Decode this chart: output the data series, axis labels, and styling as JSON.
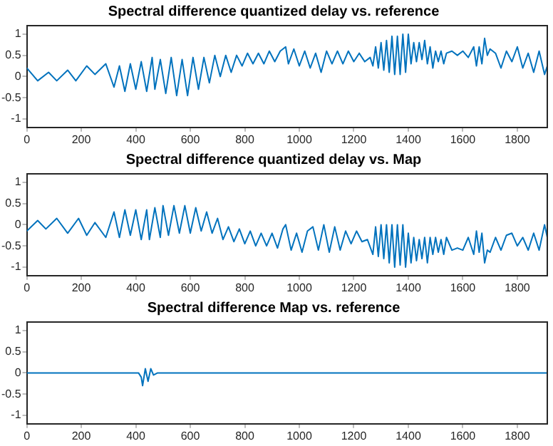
{
  "chart_data": [
    {
      "type": "line",
      "title": "Spectral difference quantized delay vs. reference",
      "color": "#0072bd",
      "xlim": [
        0,
        1910
      ],
      "xticks": [
        0,
        200,
        400,
        600,
        800,
        1000,
        1200,
        1400,
        1600,
        1800
      ],
      "ylim": [
        -1.2,
        1.2
      ],
      "yticks": [
        -1,
        -0.5,
        0,
        0.5,
        1
      ],
      "grid": false,
      "legend": false,
      "x": [
        0,
        40,
        80,
        110,
        150,
        180,
        220,
        250,
        290,
        320,
        340,
        360,
        380,
        400,
        420,
        440,
        460,
        470,
        490,
        510,
        530,
        550,
        570,
        590,
        610,
        630,
        650,
        670,
        690,
        710,
        730,
        750,
        770,
        790,
        810,
        830,
        850,
        870,
        890,
        910,
        930,
        950,
        960,
        980,
        1000,
        1020,
        1040,
        1060,
        1080,
        1100,
        1120,
        1140,
        1160,
        1180,
        1200,
        1220,
        1240,
        1260,
        1270,
        1280,
        1290,
        1300,
        1310,
        1320,
        1330,
        1340,
        1350,
        1360,
        1370,
        1380,
        1390,
        1400,
        1410,
        1420,
        1430,
        1440,
        1450,
        1460,
        1470,
        1480,
        1490,
        1500,
        1510,
        1520,
        1530,
        1540,
        1560,
        1580,
        1600,
        1620,
        1640,
        1650,
        1660,
        1670,
        1680,
        1690,
        1700,
        1720,
        1740,
        1760,
        1780,
        1800,
        1820,
        1840,
        1860,
        1880,
        1900,
        1910
      ],
      "values": [
        0.2,
        -0.1,
        0.1,
        -0.1,
        0.15,
        -0.1,
        0.25,
        0.05,
        0.3,
        -0.25,
        0.25,
        -0.35,
        0.3,
        -0.3,
        0.35,
        -0.35,
        0.45,
        -0.3,
        0.4,
        -0.4,
        0.45,
        -0.45,
        0.4,
        -0.45,
        0.45,
        -0.3,
        0.45,
        -0.15,
        0.5,
        0,
        0.5,
        0.1,
        0.5,
        0.25,
        0.55,
        0.3,
        0.55,
        0.3,
        0.6,
        0.35,
        0.6,
        0.7,
        0.3,
        0.65,
        0.25,
        0.6,
        0.2,
        0.55,
        0.1,
        0.6,
        0.3,
        0.6,
        0.3,
        0.6,
        0.35,
        0.55,
        0.35,
        0.45,
        0.25,
        0.7,
        0.2,
        0.8,
        0.15,
        0.85,
        0.1,
        0.95,
        0.05,
        0.95,
        0.05,
        1,
        0.1,
        1,
        0.3,
        0.8,
        0.35,
        0.8,
        0.4,
        0.85,
        0.3,
        0.7,
        0.2,
        0.6,
        0.35,
        0.6,
        0.3,
        0.55,
        0.6,
        0.5,
        0.6,
        0.45,
        0.7,
        0.25,
        0.7,
        0.3,
        0.9,
        0.5,
        0.65,
        0.55,
        0.2,
        0.6,
        0.35,
        0.7,
        0.2,
        0.55,
        0.1,
        0.6,
        0.05,
        0.25
      ]
    },
    {
      "type": "line",
      "title": "Spectral difference quantized delay vs. Map",
      "color": "#0072bd",
      "xlim": [
        0,
        1910
      ],
      "xticks": [
        0,
        200,
        400,
        600,
        800,
        1000,
        1200,
        1400,
        1600,
        1800
      ],
      "ylim": [
        -1.2,
        1.2
      ],
      "yticks": [
        -1,
        -0.5,
        0,
        0.5,
        1
      ],
      "grid": false,
      "legend": false,
      "x": [
        0,
        40,
        70,
        110,
        150,
        190,
        220,
        250,
        290,
        320,
        340,
        360,
        380,
        400,
        420,
        440,
        450,
        470,
        490,
        500,
        520,
        540,
        560,
        580,
        600,
        620,
        640,
        660,
        680,
        700,
        720,
        740,
        760,
        780,
        800,
        820,
        840,
        860,
        880,
        900,
        920,
        940,
        950,
        970,
        990,
        1010,
        1030,
        1050,
        1070,
        1090,
        1110,
        1130,
        1150,
        1170,
        1190,
        1210,
        1230,
        1250,
        1270,
        1280,
        1290,
        1300,
        1310,
        1320,
        1330,
        1340,
        1350,
        1360,
        1370,
        1380,
        1390,
        1400,
        1410,
        1420,
        1430,
        1440,
        1450,
        1460,
        1470,
        1480,
        1490,
        1500,
        1510,
        1520,
        1530,
        1540,
        1560,
        1580,
        1600,
        1620,
        1640,
        1650,
        1660,
        1670,
        1680,
        1690,
        1700,
        1720,
        1740,
        1760,
        1780,
        1800,
        1820,
        1840,
        1860,
        1880,
        1900,
        1910
      ],
      "values": [
        -0.15,
        0.1,
        -0.1,
        0.15,
        -0.2,
        0.15,
        -0.25,
        0.05,
        -0.3,
        0.3,
        -0.3,
        0.35,
        -0.25,
        0.35,
        -0.35,
        0.35,
        -0.35,
        0.4,
        -0.3,
        0.45,
        -0.25,
        0.45,
        -0.2,
        0.45,
        -0.2,
        0.4,
        -0.15,
        0.3,
        -0.2,
        0.15,
        -0.35,
        -0.05,
        -0.4,
        -0.1,
        -0.45,
        -0.15,
        -0.5,
        -0.2,
        -0.5,
        -0.2,
        -0.55,
        -0.1,
        0,
        -0.6,
        -0.2,
        -0.65,
        -0.15,
        -0.05,
        -0.6,
        0,
        -0.65,
        -0.05,
        -0.6,
        -0.15,
        -0.45,
        -0.15,
        -0.4,
        -0.35,
        -0.7,
        -0.05,
        -0.75,
        0,
        -0.8,
        0,
        -0.9,
        0,
        -1,
        0,
        -0.95,
        0,
        -1,
        -0.2,
        -0.9,
        -0.3,
        -0.85,
        -0.35,
        -0.8,
        -0.3,
        -0.9,
        -0.3,
        -0.7,
        -0.3,
        -0.65,
        -0.35,
        -0.7,
        -0.3,
        -0.6,
        -0.55,
        -0.6,
        -0.3,
        -0.7,
        -0.15,
        -0.65,
        -0.2,
        -0.9,
        -0.6,
        -0.65,
        -0.3,
        -0.6,
        -0.25,
        -0.2,
        -0.5,
        -0.3,
        -0.6,
        -0.2,
        -0.6,
        0,
        -0.3
      ]
    },
    {
      "type": "line",
      "title": "Spectral difference Map vs. reference",
      "color": "#0072bd",
      "xlim": [
        0,
        1910
      ],
      "xticks": [
        0,
        200,
        400,
        600,
        800,
        1000,
        1200,
        1400,
        1600,
        1800
      ],
      "ylim": [
        -1.2,
        1.2
      ],
      "yticks": [
        -1,
        -0.5,
        0,
        0.5,
        1
      ],
      "grid": false,
      "legend": false,
      "x": [
        0,
        410,
        420,
        425,
        435,
        445,
        455,
        465,
        480,
        1910
      ],
      "values": [
        0,
        0,
        -0.1,
        -0.3,
        0.1,
        -0.2,
        0.1,
        -0.05,
        0,
        0
      ]
    }
  ]
}
